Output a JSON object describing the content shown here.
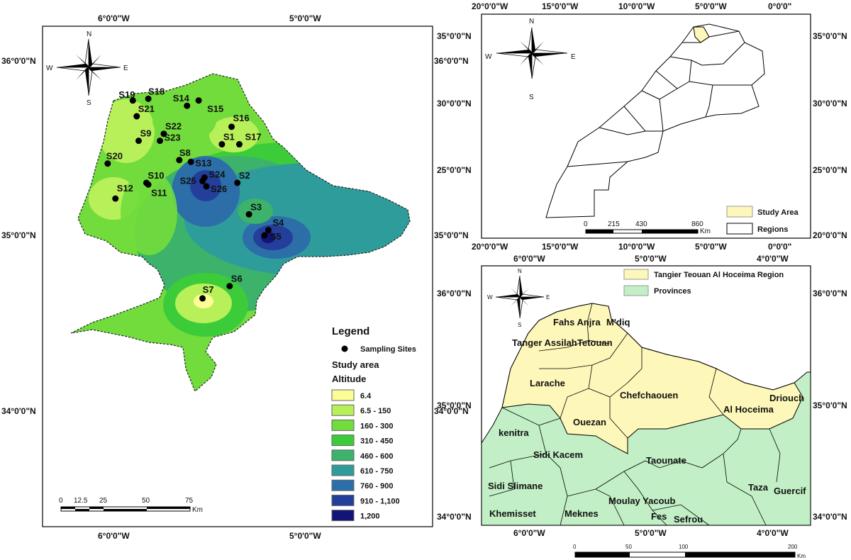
{
  "panel_a": {
    "lon_labels": [
      "6°0'0\"W",
      "5°0'0\"W"
    ],
    "lat_labels": [
      "36°0'0\"N",
      "35°0'0\"N",
      "34°0'0\"N"
    ],
    "compass": {
      "n": "N",
      "s": "S",
      "e": "E",
      "w": "W"
    },
    "sites": [
      {
        "label": "S19",
        "lon": -5.9,
        "lat": 35.77
      },
      {
        "label": "S18",
        "lon": -5.82,
        "lat": 35.78
      },
      {
        "label": "S14",
        "lon": -5.62,
        "lat": 35.74
      },
      {
        "label": "S15",
        "lon": -5.56,
        "lat": 35.77
      },
      {
        "label": "S21",
        "lon": -5.88,
        "lat": 35.68
      },
      {
        "label": "S16",
        "lon": -5.39,
        "lat": 35.62
      },
      {
        "label": "S9",
        "lon": -5.87,
        "lat": 35.54
      },
      {
        "label": "S22",
        "lon": -5.74,
        "lat": 35.58
      },
      {
        "label": "S23",
        "lon": -5.76,
        "lat": 35.54
      },
      {
        "label": "S1",
        "lon": -5.44,
        "lat": 35.52
      },
      {
        "label": "S17",
        "lon": -5.35,
        "lat": 35.52
      },
      {
        "label": "S8",
        "lon": -5.66,
        "lat": 35.43
      },
      {
        "label": "S13",
        "lon": -5.6,
        "lat": 35.42
      },
      {
        "label": "S20",
        "lon": -6.03,
        "lat": 35.41
      },
      {
        "label": "S24",
        "lon": -5.53,
        "lat": 35.33
      },
      {
        "label": "S25",
        "lon": -5.54,
        "lat": 35.31
      },
      {
        "label": "S26",
        "lon": -5.52,
        "lat": 35.28
      },
      {
        "label": "S2",
        "lon": -5.36,
        "lat": 35.3
      },
      {
        "label": "S10",
        "lon": -5.83,
        "lat": 35.3
      },
      {
        "label": "S11",
        "lon": -5.82,
        "lat": 35.29
      },
      {
        "label": "S12",
        "lon": -5.99,
        "lat": 35.21
      },
      {
        "label": "S3",
        "lon": -5.3,
        "lat": 35.12
      },
      {
        "label": "S4",
        "lon": -5.2,
        "lat": 35.03
      },
      {
        "label": "S5",
        "lon": -5.22,
        "lat": 35.0
      },
      {
        "label": "S6",
        "lon": -5.4,
        "lat": 34.71
      },
      {
        "label": "S7",
        "lon": -5.54,
        "lat": 34.64
      }
    ],
    "legend": {
      "title": "Legend",
      "sampling_label": "Sampling Sites",
      "study_area_label": "Study area",
      "altitude_label": "Altitude",
      "classes": [
        {
          "label": "6.4",
          "color": "#fdfd97"
        },
        {
          "label": "6.5 - 150",
          "color": "#b8f05a"
        },
        {
          "label": "160 - 300",
          "color": "#72dc3c"
        },
        {
          "label": "310 - 450",
          "color": "#3ccc3a"
        },
        {
          "label": "460 - 600",
          "color": "#3cb26a"
        },
        {
          "label": "610 - 750",
          "color": "#2f9c9c"
        },
        {
          "label": "760 - 900",
          "color": "#2b6ea8"
        },
        {
          "label": "910 - 1,100",
          "color": "#243e9b"
        },
        {
          "label": "1,200",
          "color": "#121478"
        }
      ]
    },
    "scale": {
      "ticks": [
        "0",
        "12.5",
        "25",
        "50",
        "75"
      ],
      "unit": "Km"
    }
  },
  "panel_b": {
    "lon_labels": [
      "20°0'0\"W",
      "15°0'0\"W",
      "10°0'0\"W",
      "5°0'0\"W",
      "0°0'0\""
    ],
    "lat_labels": [
      "35°0'0\"N",
      "30°0'0\"N",
      "25°0'0\"N",
      "20°0'0\"N"
    ],
    "compass": {
      "n": "N",
      "s": "S",
      "e": "E",
      "w": "W"
    },
    "legend": {
      "study_area": "Study Area",
      "regions": "Regions",
      "study_color": "#fdf7b9"
    },
    "scale": {
      "ticks": [
        "0",
        "215",
        "430",
        "860"
      ],
      "unit": "Km"
    }
  },
  "panel_c": {
    "lon_labels": [
      "6°0'0\"W",
      "5°0'0\"W",
      "4°0'0\"W"
    ],
    "lat_labels": [
      "36°0'0\"N",
      "35°0'0\"N",
      "34°0'0\"N"
    ],
    "compass": {
      "n": "N",
      "s": "S",
      "e": "E",
      "w": "W"
    },
    "legend": {
      "region": "Tangier Teouan Al Hoceima Region",
      "provinces": "Provinces",
      "region_color": "#fdf7b9",
      "provinces_color": "#c2efc6"
    },
    "provinces": [
      "Fahs Anjra",
      "M'diq",
      "Tanger Assilah",
      "Tetouan",
      "Larache",
      "Chefchaouen",
      "Driouch",
      "Al Hoceima",
      "Ouezan",
      "kenitra",
      "Sidi Kacem",
      "Taounate",
      "Sidi Slimane",
      "Taza",
      "Guercif",
      "Moulay Yacoub",
      "Khemisset",
      "Meknes",
      "Fes",
      "Sefrou"
    ],
    "scale": {
      "ticks": [
        "0",
        "50",
        "100",
        "200"
      ],
      "unit": "Km"
    }
  }
}
